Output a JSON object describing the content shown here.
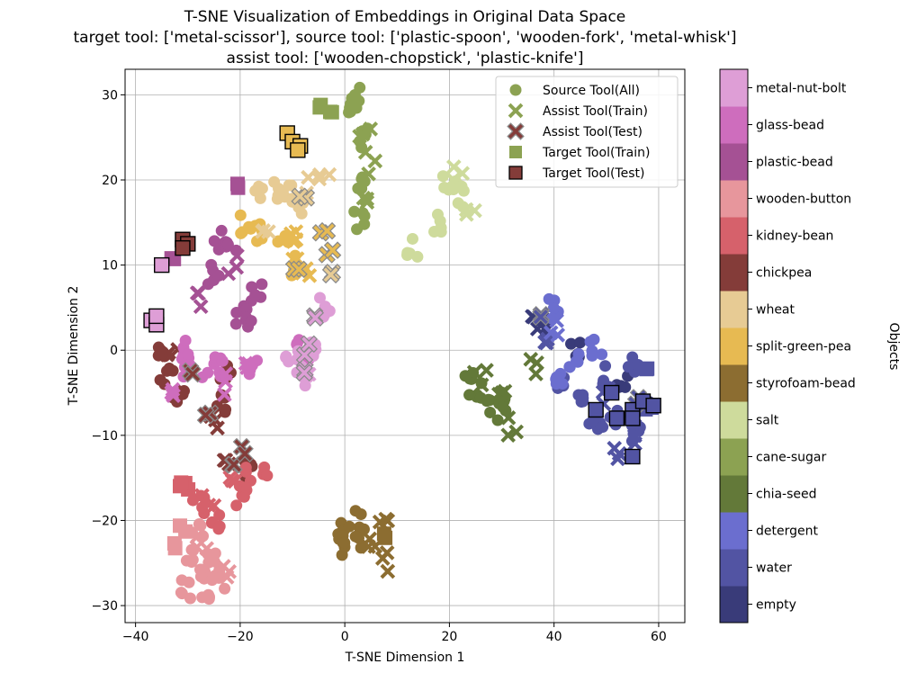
{
  "chart_data": {
    "type": "scatter",
    "title": [
      "T-SNE Visualization of Embeddings in Original Data Space",
      "target tool: ['metal-scissor'], source tool: ['plastic-spoon', 'wooden-fork', 'metal-whisk']",
      "assist tool: ['wooden-chopstick', 'plastic-knife']"
    ],
    "xlabel": "T-SNE Dimension 1",
    "ylabel": "T-SNE Dimension 2",
    "xlim": [
      -42,
      65
    ],
    "ylim": [
      -32,
      33
    ],
    "xticks": [
      -40,
      -20,
      0,
      20,
      40,
      60
    ],
    "yticks": [
      -30,
      -20,
      -10,
      0,
      10,
      20,
      30
    ],
    "xtick_labels": [
      "−40",
      "−20",
      "0",
      "20",
      "40",
      "60"
    ],
    "ytick_labels": [
      "−30",
      "−20",
      "−10",
      "0",
      "10",
      "20",
      "30"
    ],
    "grid": true,
    "legend_position": "top-right",
    "legend": [
      {
        "label": "Source Tool(All)",
        "marker": "circle",
        "color": "#8ca252"
      },
      {
        "label": "Assist Tool(Train)",
        "marker": "x",
        "color": "#8ca252"
      },
      {
        "label": "Assist Tool(Test)",
        "marker": "x-outlined",
        "color": "#843c39"
      },
      {
        "label": "Target Tool(Train)",
        "marker": "square",
        "color": "#8ca252"
      },
      {
        "label": "Target Tool(Test)",
        "marker": "square-outlined",
        "color": "#843c39"
      }
    ],
    "colorbar": {
      "label": "Objects",
      "categories": [
        "empty",
        "water",
        "detergent",
        "chia-seed",
        "cane-sugar",
        "salt",
        "styrofoam-bead",
        "split-green-pea",
        "wheat",
        "chickpea",
        "kidney-bean",
        "wooden-button",
        "plastic-bead",
        "glass-bead",
        "metal-nut-bolt"
      ],
      "colors": [
        "#393b79",
        "#5254a3",
        "#6b6ecf",
        "#637939",
        "#8ca252",
        "#cedb9c",
        "#8c6d31",
        "#e7ba52",
        "#e7cb94",
        "#843c39",
        "#d6616b",
        "#e7969c",
        "#a55194",
        "#ce6dbd",
        "#de9ed6"
      ]
    },
    "clusters": [
      {
        "category": "empty",
        "source": [
          [
            38,
            2.5
          ],
          [
            44,
            0
          ],
          [
            53,
            -4
          ],
          [
            57,
            -6
          ]
        ],
        "assist_train": [
          [
            36,
            3
          ]
        ],
        "assist_test": [],
        "target_train": [],
        "target_test": []
      },
      {
        "category": "water",
        "source": [
          [
            45,
            -5
          ],
          [
            50,
            -3
          ],
          [
            52,
            -8
          ],
          [
            55,
            -2
          ],
          [
            48,
            -9
          ],
          [
            56,
            -10
          ],
          [
            42,
            -4
          ]
        ],
        "assist_train": [
          [
            38,
            0
          ],
          [
            50,
            -5
          ],
          [
            55,
            -10
          ],
          [
            52,
            -12
          ]
        ],
        "assist_test": [
          [
            37,
            4
          ],
          [
            56,
            -6
          ]
        ],
        "target_train": [
          [
            58,
            -2
          ],
          [
            58,
            -7
          ]
        ],
        "target_test": [
          [
            51,
            -5
          ],
          [
            52,
            -8
          ],
          [
            55,
            -7
          ],
          [
            55,
            -8
          ],
          [
            57,
            -6
          ],
          [
            59,
            -6.5
          ],
          [
            48,
            -7
          ],
          [
            55,
            -12.5
          ]
        ]
      },
      {
        "category": "detergent",
        "source": [
          [
            40,
            5
          ],
          [
            44,
            -1
          ],
          [
            48,
            0
          ],
          [
            41,
            -4
          ]
        ],
        "assist_train": [
          [
            40,
            3
          ]
        ],
        "assist_test": [],
        "target_train": [],
        "target_test": []
      },
      {
        "category": "chia-seed",
        "source": [
          [
            24,
            -3
          ],
          [
            25,
            -5
          ],
          [
            28,
            -7
          ],
          [
            30,
            -7
          ]
        ],
        "assist_train": [
          [
            26,
            -3
          ],
          [
            30,
            -6
          ],
          [
            32,
            -9
          ],
          [
            36,
            -2
          ]
        ],
        "assist_test": [],
        "target_train": [],
        "target_test": []
      },
      {
        "category": "cane-sugar",
        "source": [
          [
            2,
            30
          ],
          [
            4,
            25
          ],
          [
            3,
            20
          ],
          [
            3,
            15
          ],
          [
            1,
            28
          ]
        ],
        "assist_train": [
          [
            4,
            26
          ],
          [
            5,
            22
          ],
          [
            3,
            17
          ]
        ],
        "assist_test": [],
        "target_train": [
          [
            -5,
            29
          ],
          [
            -3,
            28
          ]
        ],
        "target_test": []
      },
      {
        "category": "salt",
        "source": [
          [
            20,
            20
          ],
          [
            22,
            18
          ],
          [
            18,
            15
          ],
          [
            13,
            12
          ]
        ],
        "assist_train": [
          [
            22,
            21
          ],
          [
            24,
            16
          ]
        ],
        "assist_test": [],
        "target_train": [],
        "target_test": []
      },
      {
        "category": "styrofoam-bead",
        "source": [
          [
            0,
            -21
          ],
          [
            2,
            -20
          ],
          [
            0,
            -23
          ],
          [
            3,
            -22
          ]
        ],
        "assist_train": [
          [
            5,
            -23
          ],
          [
            7,
            -20
          ],
          [
            7,
            -25
          ]
        ],
        "assist_test": [],
        "target_train": [
          [
            8,
            -22
          ]
        ],
        "target_test": []
      },
      {
        "category": "split-green-pea",
        "source": [
          [
            -19,
            15
          ],
          [
            -12,
            13
          ],
          [
            -10,
            10
          ],
          [
            -17,
            14
          ]
        ],
        "assist_train": [
          [
            -9,
            14
          ],
          [
            -10,
            12
          ],
          [
            -7,
            10
          ]
        ],
        "assist_test": [
          [
            -4,
            14
          ],
          [
            -3,
            12
          ],
          [
            -9,
            9
          ]
        ],
        "target_train": [],
        "target_test": [
          [
            -11,
            25.5
          ],
          [
            -10,
            24.5
          ],
          [
            -8.5,
            24
          ],
          [
            -9,
            23.5
          ]
        ]
      },
      {
        "category": "wheat",
        "source": [
          [
            -16,
            18
          ],
          [
            -13,
            19
          ],
          [
            -11,
            18.5
          ],
          [
            -9,
            17
          ]
        ],
        "assist_train": [
          [
            -15,
            13
          ],
          [
            -8,
            19
          ],
          [
            -4,
            21
          ]
        ],
        "assist_test": [
          [
            -8,
            18
          ],
          [
            -3,
            9
          ]
        ],
        "target_train": [],
        "target_test": []
      },
      {
        "category": "chickpea",
        "source": [
          [
            -35,
            0
          ],
          [
            -34,
            -3
          ],
          [
            -32,
            -6
          ],
          [
            -24,
            -6
          ],
          [
            -23,
            -3
          ],
          [
            -19,
            -14
          ]
        ],
        "assist_train": [
          [
            -33,
            -1
          ],
          [
            -25,
            -8
          ],
          [
            -22,
            -13
          ]
        ],
        "assist_test": [
          [
            -29,
            -3
          ],
          [
            -26,
            -7
          ],
          [
            -21,
            -14
          ],
          [
            -19,
            -12
          ]
        ],
        "target_train": [],
        "target_test": [
          [
            -31,
            13
          ],
          [
            -30,
            12.5
          ],
          [
            -31,
            12
          ]
        ]
      },
      {
        "category": "kidney-bean",
        "source": [
          [
            -28,
            -18
          ],
          [
            -25,
            -20
          ],
          [
            -19,
            -15
          ],
          [
            -16,
            -14
          ],
          [
            -20,
            -17
          ]
        ],
        "assist_train": [
          [
            -22,
            -16
          ],
          [
            -26,
            -17
          ]
        ],
        "assist_test": [],
        "target_train": [
          [
            -30,
            -16
          ],
          [
            -31,
            -16
          ]
        ],
        "target_test": []
      },
      {
        "category": "wooden-button",
        "source": [
          [
            -29,
            -24
          ],
          [
            -27,
            -26
          ],
          [
            -25,
            -25
          ],
          [
            -30,
            -28
          ],
          [
            -24,
            -27
          ],
          [
            -28,
            -21
          ],
          [
            -26,
            -28
          ]
        ],
        "assist_train": [
          [
            -27,
            -22
          ],
          [
            -23,
            -26
          ]
        ],
        "assist_test": [],
        "target_train": [
          [
            -32,
            -23
          ],
          [
            -31,
            -21
          ]
        ],
        "target_test": []
      },
      {
        "category": "plastic-bead",
        "source": [
          [
            -25,
            9
          ],
          [
            -24,
            13
          ],
          [
            -22,
            12
          ],
          [
            -17,
            7
          ],
          [
            -20,
            4
          ],
          [
            -19,
            4
          ]
        ],
        "assist_train": [
          [
            -27,
            6
          ],
          [
            -21,
            10
          ]
        ],
        "assist_test": [],
        "target_train": [
          [
            -20,
            19.5
          ],
          [
            -33,
            11
          ]
        ],
        "target_test": []
      },
      {
        "category": "glass-bead",
        "source": [
          [
            -30,
            -2
          ],
          [
            -26,
            -2
          ],
          [
            -24,
            -2
          ],
          [
            -31,
            0
          ],
          [
            -18,
            -2
          ],
          [
            -8,
            0
          ]
        ],
        "assist_train": [
          [
            -33,
            -5
          ],
          [
            -22,
            -4
          ],
          [
            -19,
            -2
          ]
        ],
        "assist_test": [],
        "target_train": [],
        "target_test": []
      },
      {
        "category": "metal-nut-bolt",
        "source": [
          [
            -8,
            -3
          ],
          [
            -10,
            -1
          ],
          [
            -6,
            0
          ],
          [
            -4,
            5
          ]
        ],
        "assist_train": [
          [
            -7,
            -3
          ]
        ],
        "assist_test": [
          [
            -5,
            4
          ],
          [
            -7,
            0
          ],
          [
            -8,
            -2
          ]
        ],
        "target_train": [],
        "target_test": [
          [
            -37,
            3.5
          ],
          [
            -36,
            3
          ],
          [
            -35,
            10
          ],
          [
            -36,
            4
          ]
        ]
      }
    ]
  }
}
